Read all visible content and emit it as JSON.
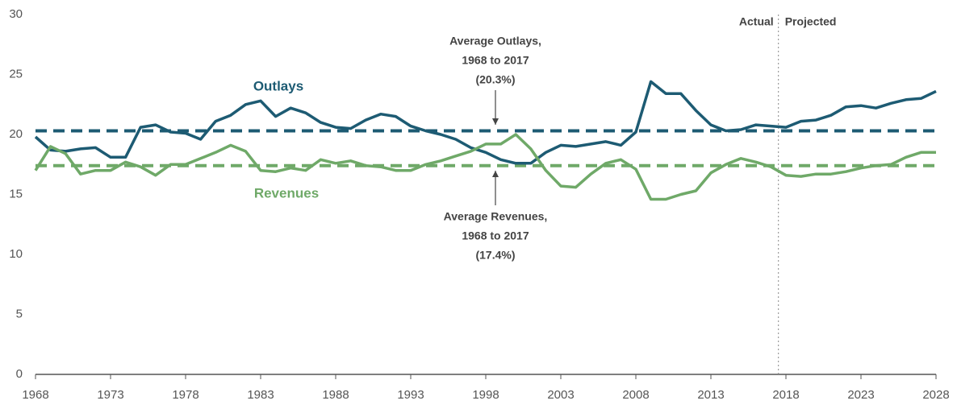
{
  "chart_data": {
    "type": "line",
    "x": [
      1968,
      1969,
      1970,
      1971,
      1972,
      1973,
      1974,
      1975,
      1976,
      1977,
      1978,
      1979,
      1980,
      1981,
      1982,
      1983,
      1984,
      1985,
      1986,
      1987,
      1988,
      1989,
      1990,
      1991,
      1992,
      1993,
      1994,
      1995,
      1996,
      1997,
      1998,
      1999,
      2000,
      2001,
      2002,
      2003,
      2004,
      2005,
      2006,
      2007,
      2008,
      2009,
      2010,
      2011,
      2012,
      2013,
      2014,
      2015,
      2016,
      2017,
      2018,
      2019,
      2020,
      2021,
      2022,
      2023,
      2024,
      2025,
      2026,
      2027,
      2028
    ],
    "series": [
      {
        "name": "Outlays",
        "color": "#1d5b73",
        "values": [
          19.8,
          18.7,
          18.6,
          18.8,
          18.9,
          18.1,
          18.1,
          20.6,
          20.8,
          20.2,
          20.1,
          19.6,
          21.1,
          21.6,
          22.5,
          22.8,
          21.5,
          22.2,
          21.8,
          21.0,
          20.6,
          20.5,
          21.2,
          21.7,
          21.5,
          20.7,
          20.3,
          20.0,
          19.6,
          18.9,
          18.5,
          17.9,
          17.6,
          17.6,
          18.5,
          19.1,
          19.0,
          19.2,
          19.4,
          19.1,
          20.2,
          24.4,
          23.4,
          23.4,
          22.0,
          20.8,
          20.3,
          20.4,
          20.8,
          20.7,
          20.6,
          21.1,
          21.2,
          21.6,
          22.3,
          22.4,
          22.2,
          22.6,
          22.9,
          23.0,
          23.6
        ]
      },
      {
        "name": "Revenues",
        "color": "#6fa968",
        "values": [
          17.0,
          19.0,
          18.4,
          16.7,
          17.0,
          17.0,
          17.7,
          17.3,
          16.6,
          17.5,
          17.5,
          18.0,
          18.5,
          19.1,
          18.6,
          17.0,
          16.9,
          17.2,
          17.0,
          17.9,
          17.6,
          17.8,
          17.4,
          17.3,
          17.0,
          17.0,
          17.5,
          17.8,
          18.2,
          18.6,
          19.2,
          19.2,
          20.0,
          18.8,
          17.0,
          15.7,
          15.6,
          16.7,
          17.6,
          17.9,
          17.1,
          14.6,
          14.6,
          15.0,
          15.3,
          16.8,
          17.5,
          18.0,
          17.7,
          17.3,
          16.6,
          16.5,
          16.7,
          16.7,
          16.9,
          17.2,
          17.4,
          17.5,
          18.1,
          18.5,
          18.5
        ]
      }
    ],
    "reference_lines": [
      {
        "value": 20.3,
        "color": "#1d5b73",
        "label": [
          "Average Outlays,",
          "1968 to 2017",
          "(20.3%)"
        ]
      },
      {
        "value": 17.4,
        "color": "#6fa968",
        "label": [
          "Average Revenues,",
          "1968 to 2017",
          "(17.4%)"
        ]
      }
    ],
    "divider": {
      "x": 2017.5,
      "left_label": "Actual",
      "right_label": "Projected"
    },
    "xlim": [
      1968,
      2028
    ],
    "xticks": [
      1968,
      1973,
      1978,
      1983,
      1988,
      1993,
      1998,
      2003,
      2008,
      2013,
      2018,
      2023,
      2028
    ],
    "ylim": [
      0,
      30
    ],
    "yticks": [
      0,
      5,
      10,
      15,
      20,
      25,
      30
    ]
  }
}
